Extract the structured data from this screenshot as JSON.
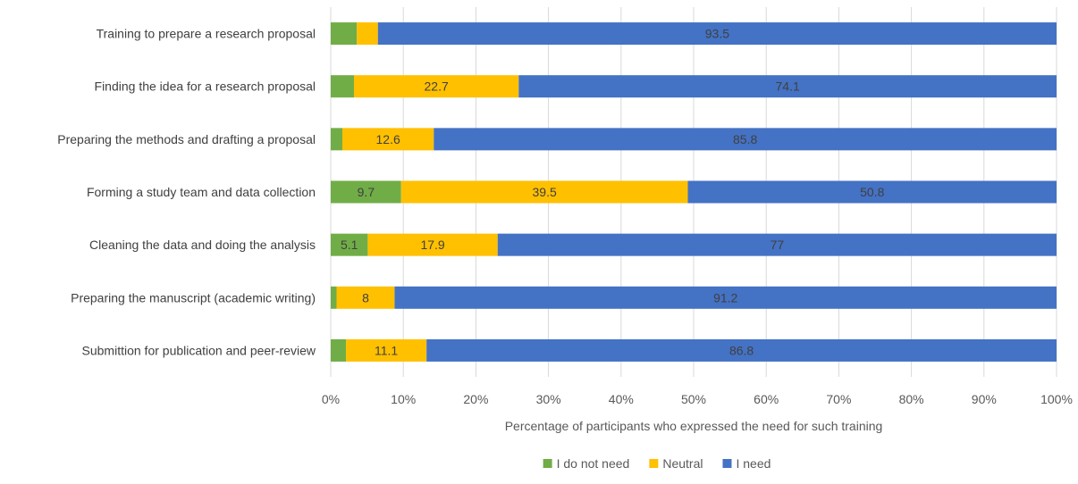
{
  "chart_data": {
    "type": "bar",
    "orientation": "horizontal",
    "stacked": "percent",
    "xlabel": "Percentage of participants who expressed the need for such training",
    "ylabel": "",
    "xlim": [
      0,
      100
    ],
    "x_ticks": [
      "0%",
      "10%",
      "20%",
      "30%",
      "40%",
      "50%",
      "60%",
      "70%",
      "80%",
      "90%",
      "100%"
    ],
    "grid": true,
    "legend_position": "bottom",
    "categories": [
      "Training to prepare a research proposal",
      "Finding the idea for a research proposal",
      "Preparing the methods and drafting a proposal",
      "Forming a study team and data collection",
      "Cleaning the data and doing the analysis",
      "Preparing the manuscript (academic writing)",
      "Submittion for publication and peer-review"
    ],
    "series": [
      {
        "name": "I do not need",
        "color": "#70ad47",
        "values": [
          3.6,
          3.2,
          1.6,
          9.7,
          5.1,
          0.8,
          2.1
        ],
        "labels": [
          "",
          "",
          "",
          "9.7",
          "5.1",
          "",
          ""
        ]
      },
      {
        "name": "Neutral",
        "color": "#ffc000",
        "values": [
          2.9,
          22.7,
          12.6,
          39.5,
          17.9,
          8,
          11.1
        ],
        "labels": [
          "",
          "22.7",
          "12.6",
          "39.5",
          "17.9",
          "8",
          "11.1"
        ]
      },
      {
        "name": "I need",
        "color": "#4472c4",
        "values": [
          93.5,
          74.1,
          85.8,
          50.8,
          77,
          91.2,
          86.8
        ],
        "labels": [
          "93.5",
          "74.1",
          "85.8",
          "50.8",
          "77",
          "91.2",
          "86.8"
        ]
      }
    ]
  }
}
